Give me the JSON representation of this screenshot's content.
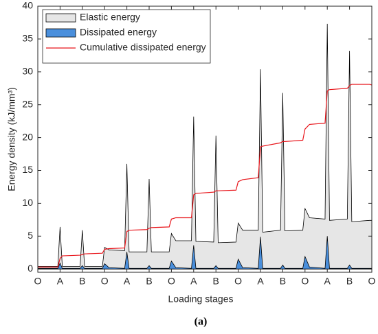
{
  "chart_data": {
    "type": "area",
    "xlabel": "Loading stages",
    "ylabel": "Energy density (kJ/mm³)",
    "caption": "(a)",
    "x": [
      0,
      0.2,
      0.9,
      1,
      1.1,
      1.9,
      2,
      2.1,
      2.9,
      3,
      3.2,
      3.9,
      4,
      4.1,
      4.9,
      5,
      5.1,
      5.9,
      6,
      6.2,
      6.9,
      7,
      7.1,
      7.9,
      8,
      8.1,
      8.9,
      9,
      9.2,
      9.9,
      10,
      10.1,
      10.9,
      11,
      11.1,
      11.9,
      12,
      12.2,
      12.9,
      13,
      13.1,
      13.9,
      14,
      14.1,
      14.9,
      15
    ],
    "series": [
      {
        "name": "Elastic energy",
        "color": "#e6e6e6",
        "kind": "area",
        "values": [
          0.4,
          0.4,
          0.4,
          6.4,
          0.4,
          0.4,
          5.9,
          0.4,
          0.4,
          3.3,
          2.9,
          2.8,
          16.0,
          2.6,
          2.6,
          13.7,
          2.6,
          2.6,
          5.4,
          4.3,
          4.3,
          23.2,
          4.2,
          4.1,
          20.3,
          4.0,
          4.1,
          7.0,
          5.9,
          5.9,
          30.4,
          5.6,
          5.9,
          26.8,
          5.8,
          5.9,
          9.2,
          7.8,
          7.6,
          37.3,
          7.4,
          7.6,
          33.2,
          7.2,
          7.4,
          7.4
        ]
      },
      {
        "name": "Dissipated energy",
        "color": "#4a8fdc",
        "kind": "area",
        "values": [
          0.1,
          0.1,
          0.1,
          0.9,
          0.1,
          0.1,
          0.5,
          0.1,
          0.1,
          0.8,
          0.2,
          0.1,
          2.6,
          0.1,
          0.1,
          0.5,
          0.1,
          0.1,
          1.2,
          0.2,
          0.1,
          3.6,
          0.1,
          0.1,
          0.5,
          0.1,
          0.1,
          1.5,
          0.2,
          0.1,
          4.9,
          0.1,
          0.1,
          0.6,
          0.1,
          0.1,
          1.9,
          0.3,
          0.1,
          5.0,
          0.1,
          0.1,
          0.6,
          0.1,
          0.1,
          0.1
        ]
      },
      {
        "name": "Cumulative dissipated energy",
        "color": "#e8141a",
        "kind": "line",
        "values": [
          0.3,
          0.3,
          0.3,
          1.6,
          2.0,
          2.1,
          2.2,
          2.3,
          2.4,
          3.0,
          3.1,
          3.2,
          5.7,
          5.9,
          6.0,
          6.2,
          6.3,
          6.4,
          7.6,
          7.8,
          7.8,
          11.3,
          11.5,
          11.7,
          11.9,
          11.9,
          12.0,
          13.3,
          13.6,
          13.9,
          18.6,
          18.7,
          19.2,
          19.4,
          19.4,
          19.6,
          21.3,
          22.0,
          22.2,
          27.1,
          27.3,
          27.5,
          27.9,
          28.1,
          28.1,
          28.0
        ]
      }
    ],
    "xlim": [
      0,
      15
    ],
    "xticks": [
      {
        "value": 0,
        "label": "O"
      },
      {
        "value": 1,
        "label": "A"
      },
      {
        "value": 2,
        "label": "B"
      },
      {
        "value": 3,
        "label": "O"
      },
      {
        "value": 4,
        "label": "A"
      },
      {
        "value": 5,
        "label": "B"
      },
      {
        "value": 6,
        "label": "O"
      },
      {
        "value": 7,
        "label": "A"
      },
      {
        "value": 8,
        "label": "B"
      },
      {
        "value": 9,
        "label": "O"
      },
      {
        "value": 10,
        "label": "A"
      },
      {
        "value": 11,
        "label": "B"
      },
      {
        "value": 12,
        "label": "O"
      },
      {
        "value": 13,
        "label": "A"
      },
      {
        "value": 14,
        "label": "B"
      },
      {
        "value": 15,
        "label": "O"
      }
    ],
    "ylim": [
      -0.5,
      40
    ],
    "yticks": [
      0,
      5,
      10,
      15,
      20,
      25,
      30,
      35,
      40
    ],
    "grid": false,
    "legend": "upper left"
  }
}
